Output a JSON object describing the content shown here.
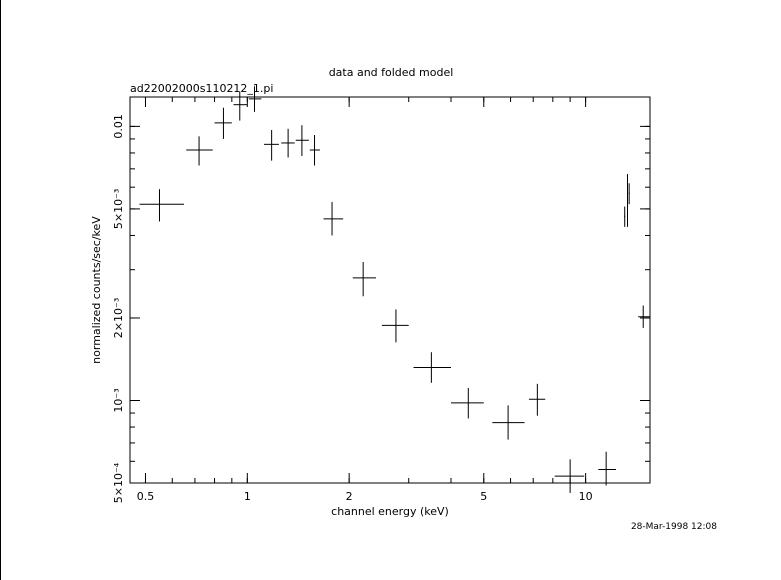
{
  "chart_data": {
    "type": "scatter",
    "title": "data and folded model",
    "subtitle": "ad22002000s110212_1.pi",
    "xlabel": "channel energy (keV)",
    "ylabel": "normalized counts/sec/keV",
    "xscale": "log",
    "yscale": "log",
    "xlim": [
      0.45,
      15.5
    ],
    "ylim": [
      0.0005,
      0.0128
    ],
    "xticks": [
      {
        "value": 0.5,
        "label": "0.5"
      },
      {
        "value": 1,
        "label": "1"
      },
      {
        "value": 2,
        "label": "2"
      },
      {
        "value": 5,
        "label": "5"
      },
      {
        "value": 10,
        "label": "10"
      }
    ],
    "yticks": [
      {
        "value": 0.01,
        "label": "0.01"
      },
      {
        "value": 0.005,
        "label": "5×10⁻³"
      },
      {
        "value": 0.002,
        "label": "2×10⁻³"
      },
      {
        "value": 0.001,
        "label": "10⁻³"
      },
      {
        "value": 0.0005,
        "label": "5×10⁻⁴"
      }
    ],
    "series": [
      {
        "points": [
          {
            "x": 0.55,
            "y": 0.0052,
            "xlo": 0.48,
            "xhi": 0.65,
            "ylo": 0.0045,
            "yhi": 0.0059
          },
          {
            "x": 0.72,
            "y": 0.0082,
            "xlo": 0.66,
            "xhi": 0.79,
            "ylo": 0.0072,
            "yhi": 0.0092
          },
          {
            "x": 0.85,
            "y": 0.0103,
            "xlo": 0.8,
            "xhi": 0.9,
            "ylo": 0.009,
            "yhi": 0.0117
          },
          {
            "x": 0.95,
            "y": 0.012,
            "xlo": 0.91,
            "xhi": 1.0,
            "ylo": 0.0105,
            "yhi": 0.0134
          },
          {
            "x": 1.05,
            "y": 0.0126,
            "xlo": 1.01,
            "xhi": 1.1,
            "ylo": 0.0113,
            "yhi": 0.014
          },
          {
            "x": 1.18,
            "y": 0.0086,
            "xlo": 1.12,
            "xhi": 1.24,
            "ylo": 0.0075,
            "yhi": 0.0097
          },
          {
            "x": 1.32,
            "y": 0.0087,
            "xlo": 1.26,
            "xhi": 1.38,
            "ylo": 0.0077,
            "yhi": 0.0098
          },
          {
            "x": 1.45,
            "y": 0.0089,
            "xlo": 1.39,
            "xhi": 1.52,
            "ylo": 0.0078,
            "yhi": 0.0101
          },
          {
            "x": 1.58,
            "y": 0.0082,
            "xlo": 1.53,
            "xhi": 1.64,
            "ylo": 0.0072,
            "yhi": 0.0093
          },
          {
            "x": 1.78,
            "y": 0.0046,
            "xlo": 1.68,
            "xhi": 1.92,
            "ylo": 0.004,
            "yhi": 0.0053
          },
          {
            "x": 2.2,
            "y": 0.0028,
            "xlo": 2.05,
            "xhi": 2.4,
            "ylo": 0.0024,
            "yhi": 0.0032
          },
          {
            "x": 2.75,
            "y": 0.00188,
            "xlo": 2.5,
            "xhi": 3.0,
            "ylo": 0.00163,
            "yhi": 0.00215
          },
          {
            "x": 3.5,
            "y": 0.00132,
            "xlo": 3.1,
            "xhi": 4.0,
            "ylo": 0.00116,
            "yhi": 0.0015
          },
          {
            "x": 4.5,
            "y": 0.00098,
            "xlo": 4.0,
            "xhi": 5.0,
            "ylo": 0.00086,
            "yhi": 0.00111
          },
          {
            "x": 5.9,
            "y": 0.00083,
            "xlo": 5.3,
            "xhi": 6.6,
            "ylo": 0.00072,
            "yhi": 0.00096
          },
          {
            "x": 7.2,
            "y": 0.00101,
            "xlo": 6.8,
            "xhi": 7.6,
            "ylo": 0.00088,
            "yhi": 0.00115
          },
          {
            "x": 9.0,
            "y": 0.00053,
            "xlo": 8.1,
            "xhi": 9.9,
            "ylo": 0.00046,
            "yhi": 0.00061
          },
          {
            "x": 11.5,
            "y": 0.00056,
            "xlo": 10.9,
            "xhi": 12.3,
            "ylo": 0.00049,
            "yhi": 0.00065
          },
          {
            "x": 13.05,
            "y": 0.0047,
            "xlo": 13.0,
            "xhi": 13.1,
            "ylo": 0.0043,
            "yhi": 0.0051
          },
          {
            "x": 13.3,
            "y": 0.0051,
            "xlo": 13.25,
            "xhi": 13.35,
            "ylo": 0.0043,
            "yhi": 0.0067
          },
          {
            "x": 13.45,
            "y": 0.0057,
            "xlo": 13.4,
            "xhi": 13.5,
            "ylo": 0.0052,
            "yhi": 0.0062
          },
          {
            "x": 14.8,
            "y": 0.00202,
            "xlo": 14.3,
            "xhi": 15.5,
            "ylo": 0.00184,
            "yhi": 0.00222
          }
        ]
      }
    ],
    "timestamp": "28-Mar-1998 12:08"
  }
}
